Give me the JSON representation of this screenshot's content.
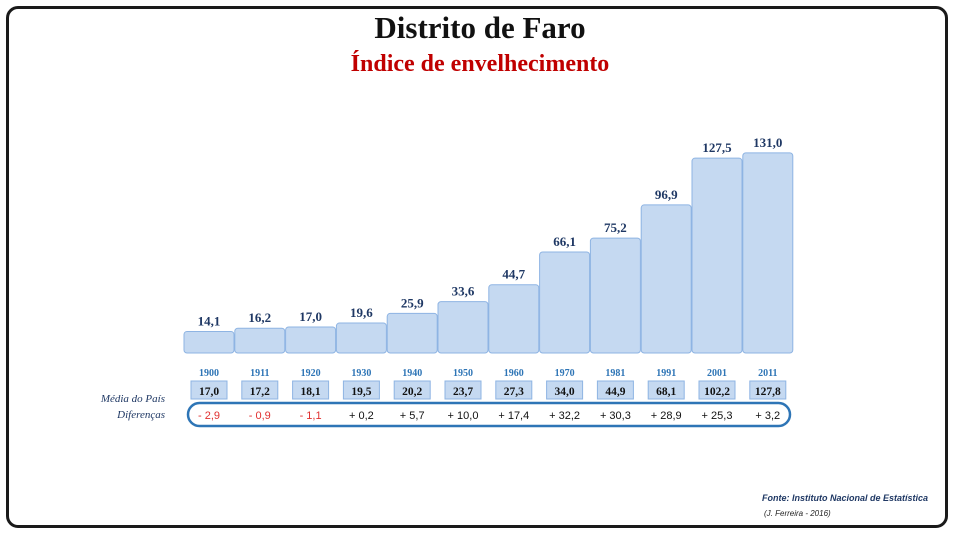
{
  "chart_data": {
    "type": "bar",
    "title": "Distrito de Faro",
    "subtitle": "Índice de envelhecimento",
    "categories": [
      "1900",
      "1911",
      "1920",
      "1930",
      "1940",
      "1950",
      "1960",
      "1970",
      "1981",
      "1991",
      "2001",
      "2011"
    ],
    "values": [
      14.1,
      16.2,
      17.0,
      19.6,
      25.9,
      33.6,
      44.7,
      66.1,
      75.2,
      96.9,
      127.5,
      131.0
    ],
    "value_labels": [
      "14,1",
      "16,2",
      "17,0",
      "19,6",
      "25,9",
      "33,6",
      "44,7",
      "66,1",
      "75,2",
      "96,9",
      "127,5",
      "131,0"
    ],
    "national_average": {
      "label": "Média do País",
      "values": [
        "17,0",
        "17,2",
        "18,1",
        "19,5",
        "20,2",
        "23,7",
        "27,3",
        "34,0",
        "44,9",
        "68,1",
        "102,2",
        "127,8"
      ]
    },
    "differences": {
      "label": "Diferenças",
      "values": [
        "- 2,9",
        "- 0,9",
        "- 1,1",
        "+ 0,2",
        "+ 5,7",
        "+ 10,0",
        "+ 17,4",
        "+ 32,2",
        "+ 30,3",
        "+ 28,9",
        "+ 25,3",
        "+ 3,2"
      ],
      "negative": [
        true,
        true,
        true,
        false,
        false,
        false,
        false,
        false,
        false,
        false,
        false,
        false
      ]
    },
    "colors": {
      "bar_fill": "#c5d9f1",
      "bar_stroke": "#8eb4e3",
      "value_text": "#1f3864",
      "year_text": "#2e75b6",
      "negative_text": "#e03030",
      "positive_text": "#111111",
      "highlight_border": "#2e75b6"
    },
    "grid": false,
    "legend": "none"
  },
  "source": "Fonte: Instituto Nacional de Estatística",
  "author": "(J. Ferreira - 2016)"
}
